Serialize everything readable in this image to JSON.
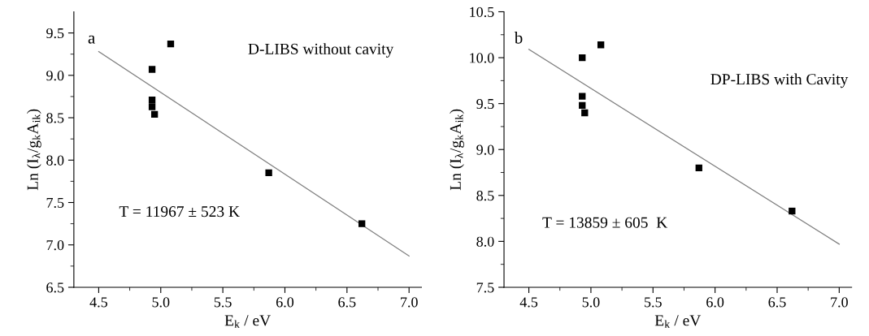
{
  "chart_data": [
    {
      "type": "scatter",
      "xlabel": "E$_{k}$ / eV",
      "ylabel": "Ln (I$_{λ}$/g$_{k}$A$_{ik}$)",
      "xlim": [
        4.3,
        7.1
      ],
      "ylim": [
        6.5,
        9.75
      ],
      "xticks": [
        4.5,
        {
          "value": 5,
          "label": "5.0"
        },
        5.5,
        {
          "value": 6,
          "label": "6.0"
        },
        6.5,
        {
          "value": 7,
          "label": "7.0"
        }
      ],
      "yticks": [
        6.5,
        {
          "value": 7,
          "label": "7.0"
        },
        7.5,
        {
          "value": 8,
          "label": "8.0"
        },
        8.5,
        {
          "value": 9,
          "label": "9.0"
        },
        9.5
      ],
      "grid": false,
      "legend": false,
      "annotations": [
        "a",
        "D-LIBS without cavity",
        "T = 11967 ± 523 K"
      ],
      "series": [
        {
          "color": "#000000",
          "marker": "square",
          "x": [
            4.93,
            4.93,
            4.93,
            4.95,
            5.08,
            5.87,
            6.62
          ],
          "values": [
            9.07,
            8.71,
            8.63,
            8.54,
            9.37,
            7.85,
            7.25
          ]
        },
        {
          "type": "line",
          "marker": "none",
          "color": "#808080",
          "x": [
            4.5,
            7.0
          ],
          "values": [
            9.28,
            6.87
          ]
        }
      ]
    },
    {
      "type": "scatter",
      "xlabel": "E$_{k}$ / eV",
      "ylabel": "Ln (I$_{λ}$/g$_{k}$A$_{ik}$)",
      "xlim": [
        4.3,
        7.1
      ],
      "ylim": [
        7.5,
        10.5
      ],
      "xticks": [
        4.5,
        {
          "value": 5,
          "label": "5.0"
        },
        5.5,
        {
          "value": 6,
          "label": "6.0"
        },
        6.5,
        {
          "value": 7,
          "label": "7.0"
        }
      ],
      "yticks": [
        7.5,
        {
          "value": 8,
          "label": "8.0"
        },
        8.5,
        {
          "value": 9,
          "label": "9.0"
        },
        9.5,
        {
          "value": 10,
          "label": "10.0"
        },
        10.5
      ],
      "grid": false,
      "legend": false,
      "annotations": [
        "b",
        "DP-LIBS with Cavity",
        "T = 13859 ± 605  K"
      ],
      "series": [
        {
          "color": "#000000",
          "marker": "square",
          "x": [
            4.93,
            4.93,
            4.93,
            4.95,
            5.08,
            5.87,
            6.62
          ],
          "values": [
            10.0,
            9.58,
            9.48,
            9.4,
            10.14,
            8.8,
            8.33
          ]
        },
        {
          "type": "line",
          "marker": "none",
          "color": "#808080",
          "x": [
            4.5,
            7.0
          ],
          "values": [
            10.09,
            7.97
          ]
        }
      ]
    }
  ]
}
